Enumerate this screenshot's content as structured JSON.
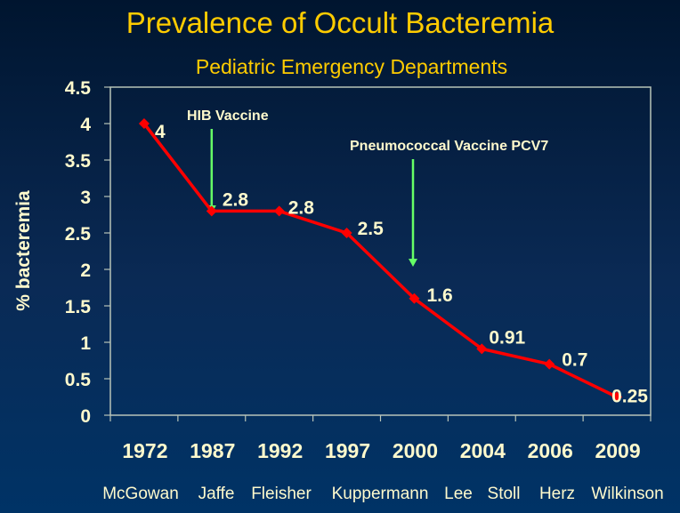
{
  "chart_data": {
    "type": "line",
    "title": "Prevalence of Occult Bacteremia",
    "subtitle": "Pediatric Emergency Departments",
    "xlabel": "",
    "ylabel": "% bacteremia",
    "ylim": [
      0,
      4.5
    ],
    "yticks": [
      "0",
      "0.5",
      "1",
      "1.5",
      "2",
      "2.5",
      "3",
      "3.5",
      "4",
      "4.5"
    ],
    "ytick_values": [
      0,
      0.5,
      1,
      1.5,
      2,
      2.5,
      3,
      3.5,
      4,
      4.5
    ],
    "categories": [
      "1972",
      "1987",
      "1992",
      "1997",
      "2000",
      "2004",
      "2006",
      "2009"
    ],
    "authors": [
      "McGowan",
      "Jaffe",
      "Fleisher",
      "Kuppermann",
      "Lee",
      "Stoll",
      "Herz",
      "Wilkinson"
    ],
    "series": [
      {
        "name": "% bacteremia",
        "values": [
          4,
          2.8,
          2.8,
          2.5,
          1.6,
          0.91,
          0.7,
          0.25
        ],
        "labels": [
          "4",
          "2.8",
          "2.8",
          "2.5",
          "1.6",
          "0.91",
          "0.7",
          "0.25"
        ],
        "color": "#ff0000"
      }
    ],
    "annotations": [
      {
        "text": "HIB Vaccine",
        "category": "1987",
        "arrow_color": "#66ff66"
      },
      {
        "text": "Pneumococcal Vaccine PCV7",
        "category": "2000",
        "arrow_color": "#66ff66"
      }
    ],
    "grid": false,
    "legend": "none"
  },
  "colors": {
    "title": "#ffcc00",
    "text": "#fffacd",
    "axis": "#b8c4b8",
    "line": "#ff0000",
    "arrow": "#66ff66"
  }
}
